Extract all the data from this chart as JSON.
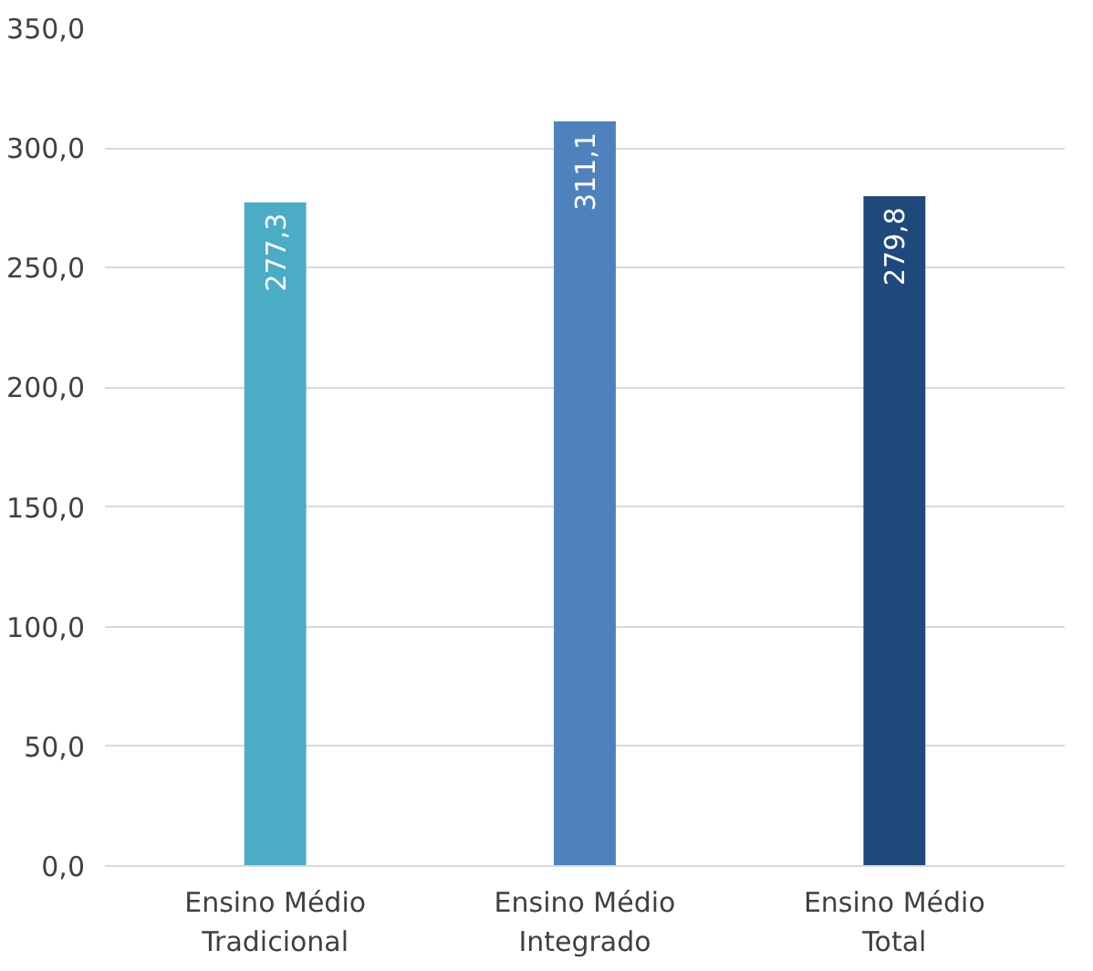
{
  "chart_data": {
    "type": "bar",
    "categories": [
      "Ensino Médio\nTradicional",
      "Ensino Médio\nIntegrado",
      "Ensino Médio\nTotal"
    ],
    "values": [
      277.3,
      311.1,
      279.8
    ],
    "colors": [
      "#4bacc6",
      "#4f81bd",
      "#1f497d"
    ],
    "value_labels": [
      "277,3",
      "311,1",
      "279,8"
    ],
    "ylim": [
      0,
      350
    ],
    "yticks": [
      {
        "value": 0,
        "label": "0,0"
      },
      {
        "value": 50,
        "label": "50,0"
      },
      {
        "value": 100,
        "label": "100,0"
      },
      {
        "value": 150,
        "label": "150,0"
      },
      {
        "value": 200,
        "label": "200,0"
      },
      {
        "value": 250,
        "label": "250,0"
      },
      {
        "value": 300,
        "label": "300,0"
      },
      {
        "value": 350,
        "label": "350,0"
      }
    ],
    "grid": "y"
  }
}
